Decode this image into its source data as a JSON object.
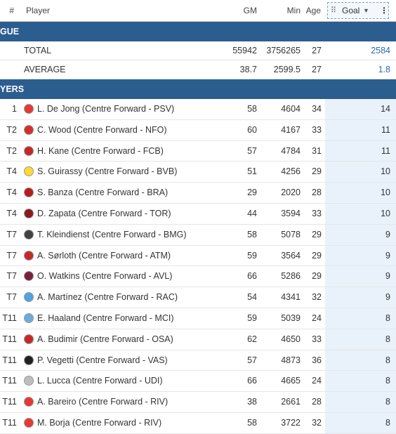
{
  "header": {
    "rank": "#",
    "player": "Player",
    "gm": "GM",
    "min": "Min",
    "age": "Age",
    "goal": "Goal"
  },
  "league_section": {
    "label": "GUE"
  },
  "summary": [
    {
      "label": "TOTAL",
      "gm": "55942",
      "min": "3756265",
      "age": "27",
      "goal": "2584"
    },
    {
      "label": "AVERAGE",
      "gm": "38.7",
      "min": "2599.5",
      "age": "27",
      "goal": "1.8"
    }
  ],
  "players_section": {
    "label": "YERS"
  },
  "players": [
    {
      "rank": "1",
      "name": "L. De Jong (Centre Forward - PSV)",
      "gm": "58",
      "min": "4604",
      "age": "34",
      "goal": "14",
      "logo": "psv-icon",
      "color": "#e53935"
    },
    {
      "rank": "T2",
      "name": "C. Wood (Centre Forward - NFO)",
      "gm": "60",
      "min": "4167",
      "age": "33",
      "goal": "11",
      "logo": "nfo-icon",
      "color": "#d32f2f"
    },
    {
      "rank": "T2",
      "name": "H. Kane (Centre Forward - FCB)",
      "gm": "57",
      "min": "4784",
      "age": "31",
      "goal": "11",
      "logo": "fcb-icon",
      "color": "#c62828"
    },
    {
      "rank": "T4",
      "name": "S. Guirassy (Centre Forward - BVB)",
      "gm": "51",
      "min": "4256",
      "age": "29",
      "goal": "10",
      "logo": "bvb-icon",
      "color": "#fdd835"
    },
    {
      "rank": "T4",
      "name": "S. Banza (Centre Forward - BRA)",
      "gm": "29",
      "min": "2020",
      "age": "28",
      "goal": "10",
      "logo": "bra-icon",
      "color": "#b71c1c"
    },
    {
      "rank": "T4",
      "name": "D. Zapata (Centre Forward - TOR)",
      "gm": "44",
      "min": "3594",
      "age": "33",
      "goal": "10",
      "logo": "tor-icon",
      "color": "#8d1b1b"
    },
    {
      "rank": "T7",
      "name": "T. Kleindienst (Centre Forward - BMG)",
      "gm": "58",
      "min": "5078",
      "age": "29",
      "goal": "9",
      "logo": "bmg-icon",
      "color": "#424242"
    },
    {
      "rank": "T7",
      "name": "A. Sørloth (Centre Forward - ATM)",
      "gm": "59",
      "min": "3564",
      "age": "29",
      "goal": "9",
      "logo": "atm-icon",
      "color": "#c62828"
    },
    {
      "rank": "T7",
      "name": "O. Watkins (Centre Forward - AVL)",
      "gm": "66",
      "min": "5286",
      "age": "29",
      "goal": "9",
      "logo": "avl-icon",
      "color": "#7b1f3a"
    },
    {
      "rank": "T7",
      "name": "A. Martínez (Centre Forward - RAC)",
      "gm": "54",
      "min": "4341",
      "age": "32",
      "goal": "9",
      "logo": "rac-icon",
      "color": "#4fa3e0"
    },
    {
      "rank": "T11",
      "name": "E. Haaland (Centre Forward - MCI)",
      "gm": "59",
      "min": "5039",
      "age": "24",
      "goal": "8",
      "logo": "mci-icon",
      "color": "#6cabdd"
    },
    {
      "rank": "T11",
      "name": "A. Budimir (Centre Forward - OSA)",
      "gm": "62",
      "min": "4650",
      "age": "33",
      "goal": "8",
      "logo": "osa-icon",
      "color": "#c62828"
    },
    {
      "rank": "T11",
      "name": "P. Vegetti (Centre Forward - VAS)",
      "gm": "57",
      "min": "4873",
      "age": "36",
      "goal": "8",
      "logo": "vas-icon",
      "color": "#212121"
    },
    {
      "rank": "T11",
      "name": "L. Lucca (Centre Forward - UDI)",
      "gm": "66",
      "min": "4665",
      "age": "24",
      "goal": "8",
      "logo": "udi-icon",
      "color": "#bdbdbd"
    },
    {
      "rank": "T11",
      "name": "A. Bareiro (Centre Forward - RIV)",
      "gm": "38",
      "min": "2661",
      "age": "28",
      "goal": "8",
      "logo": "riv-icon",
      "color": "#e53935"
    },
    {
      "rank": "T11",
      "name": "M. Borja (Centre Forward - RIV)",
      "gm": "58",
      "min": "3722",
      "age": "32",
      "goal": "8",
      "logo": "riv-icon",
      "color": "#e53935"
    }
  ]
}
